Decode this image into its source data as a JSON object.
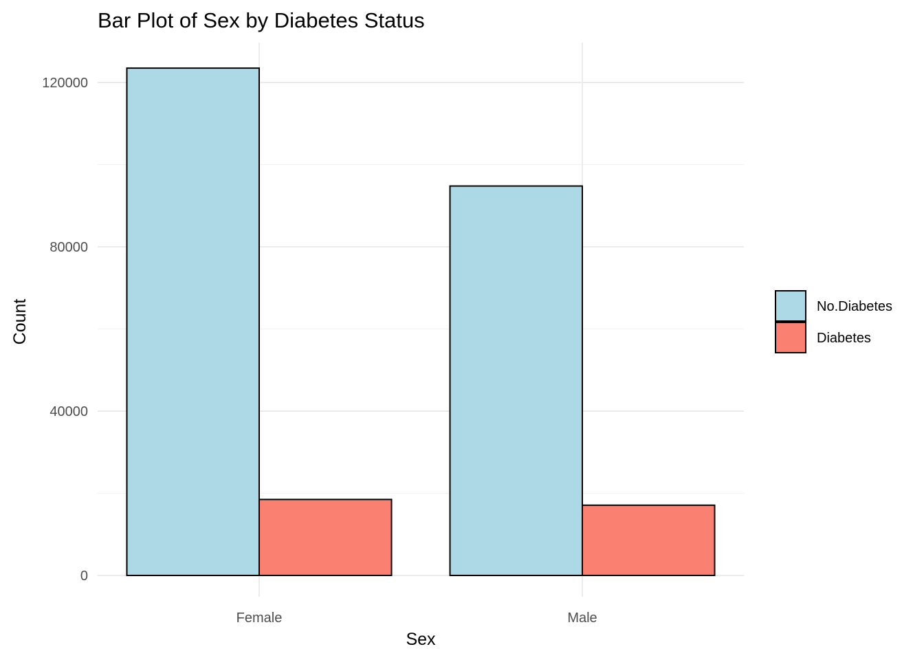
{
  "chart_data": {
    "type": "bar",
    "title": "Bar Plot of Sex by Diabetes Status",
    "xlabel": "Sex",
    "ylabel": "Count",
    "categories": [
      "Female",
      "Male"
    ],
    "series": [
      {
        "name": "No.Diabetes",
        "color": "#ADD8E6",
        "values": [
          123500,
          94800
        ]
      },
      {
        "name": "Diabetes",
        "color": "#FA8072",
        "values": [
          18500,
          17100
        ]
      }
    ],
    "ylim": [
      0,
      128000
    ],
    "y_ticks": [
      0,
      40000,
      80000,
      120000
    ],
    "y_tick_labels": [
      "0",
      "40000",
      "80000",
      "120000"
    ],
    "grid": true,
    "legend_position": "right",
    "bar_outline_color": "#000000"
  }
}
